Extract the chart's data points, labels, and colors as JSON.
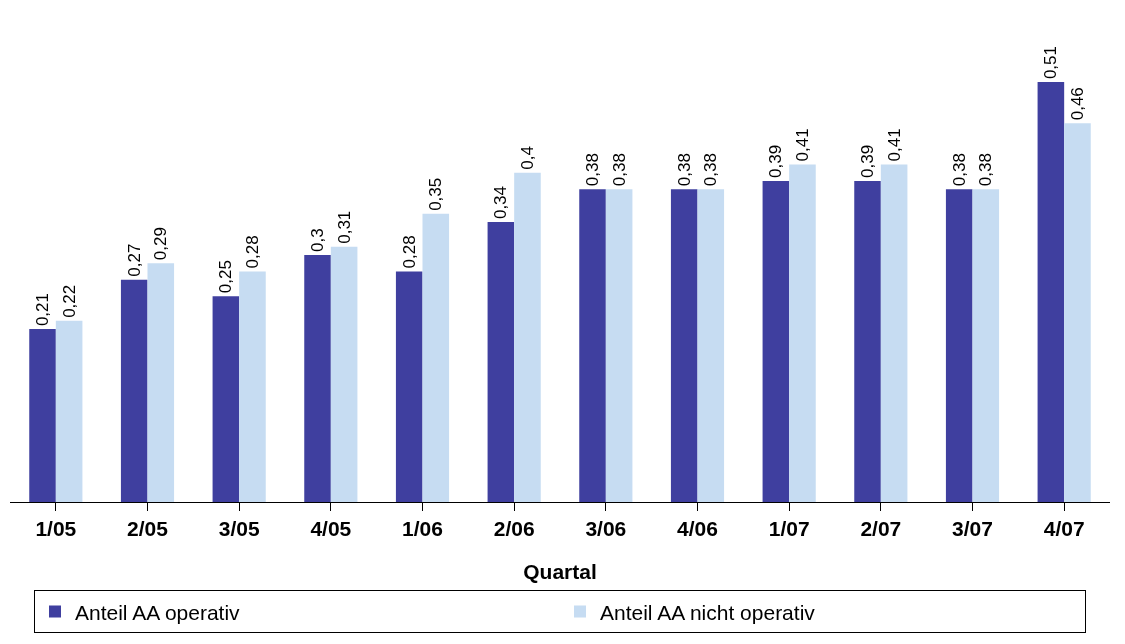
{
  "chart_data": {
    "type": "bar",
    "xlabel": "Quartal",
    "categories": [
      "1/05",
      "2/05",
      "3/05",
      "4/05",
      "1/06",
      "2/06",
      "3/06",
      "4/06",
      "1/07",
      "2/07",
      "3/07",
      "4/07"
    ],
    "series": [
      {
        "name": "Anteil AA operativ",
        "color": "#3f3f9f",
        "values": [
          0.21,
          0.27,
          0.25,
          0.3,
          0.28,
          0.34,
          0.38,
          0.38,
          0.39,
          0.39,
          0.38,
          0.51
        ],
        "value_labels": [
          "0,21",
          "0,27",
          "0,25",
          "0,3",
          "0,28",
          "0,34",
          "0,38",
          "0,38",
          "0,39",
          "0,39",
          "0,38",
          "0,51"
        ]
      },
      {
        "name": "Anteil AA nicht operativ",
        "color": "#c6dcf2",
        "values": [
          0.22,
          0.29,
          0.28,
          0.31,
          0.35,
          0.4,
          0.38,
          0.38,
          0.41,
          0.41,
          0.38,
          0.46
        ],
        "value_labels": [
          "0,22",
          "0,29",
          "0,28",
          "0,31",
          "0,35",
          "0,4",
          "0,38",
          "0,38",
          "0,41",
          "0,41",
          "0,38",
          "0,46"
        ]
      }
    ],
    "legend": "bottom",
    "tick_labels": "x"
  }
}
